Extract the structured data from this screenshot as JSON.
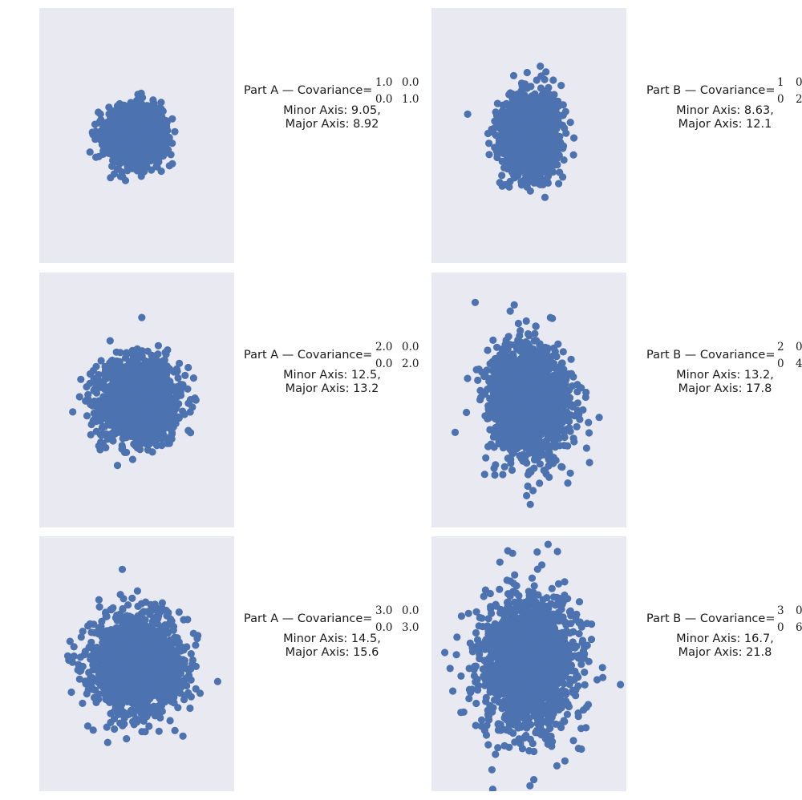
{
  "colors": {
    "marker": "#4c72b0",
    "panel_bg": "#e9e9f1"
  },
  "chart_data": [
    {
      "type": "scatter",
      "part": "A",
      "title_label": "Part A — Covariance=",
      "covariance": [
        [
          "1.0",
          "0.0"
        ],
        [
          "0.0",
          "1.0"
        ]
      ],
      "minor_axis_text": "Minor Axis: 9.05,",
      "major_axis_text": "Major Axis: 8.92",
      "minor_axis": 9.05,
      "major_axis": 8.92,
      "mean": [
        0,
        0
      ],
      "cov": [
        [
          1,
          0
        ],
        [
          0,
          1
        ]
      ],
      "xlim": [
        -7,
        7
      ],
      "ylim": [
        -9,
        9
      ],
      "grid": false
    },
    {
      "type": "scatter",
      "part": "B",
      "title_label": "Part B — Covariance=",
      "covariance": [
        [
          "1",
          "0"
        ],
        [
          "0",
          "2"
        ]
      ],
      "minor_axis_text": "Minor Axis: 8.63,",
      "major_axis_text": "Major Axis: 12.1",
      "minor_axis": 8.63,
      "major_axis": 12.1,
      "mean": [
        0,
        0
      ],
      "cov": [
        [
          1,
          0
        ],
        [
          0,
          2
        ]
      ],
      "xlim": [
        -7,
        7
      ],
      "ylim": [
        -9,
        9
      ],
      "grid": false
    },
    {
      "type": "scatter",
      "part": "A",
      "title_label": "Part A — Covariance=",
      "covariance": [
        [
          "2.0",
          "0.0"
        ],
        [
          "0.0",
          "2.0"
        ]
      ],
      "minor_axis_text": "Minor Axis: 12.5,",
      "major_axis_text": "Major Axis: 13.2",
      "minor_axis": 12.5,
      "major_axis": 13.2,
      "mean": [
        0,
        0
      ],
      "cov": [
        [
          2,
          0
        ],
        [
          0,
          2
        ]
      ],
      "xlim": [
        -7,
        7
      ],
      "ylim": [
        -9,
        9
      ],
      "grid": false
    },
    {
      "type": "scatter",
      "part": "B",
      "title_label": "Part B — Covariance=",
      "covariance": [
        [
          "2",
          "0"
        ],
        [
          "0",
          "4"
        ]
      ],
      "minor_axis_text": "Minor Axis: 13.2,",
      "major_axis_text": "Major Axis: 17.8",
      "minor_axis": 13.2,
      "major_axis": 17.8,
      "mean": [
        0,
        0
      ],
      "cov": [
        [
          2,
          0
        ],
        [
          0,
          4
        ]
      ],
      "xlim": [
        -7,
        7
      ],
      "ylim": [
        -9,
        9
      ],
      "grid": false
    },
    {
      "type": "scatter",
      "part": "A",
      "title_label": "Part A — Covariance=",
      "covariance": [
        [
          "3.0",
          "0.0"
        ],
        [
          "0.0",
          "3.0"
        ]
      ],
      "minor_axis_text": "Minor Axis: 14.5,",
      "major_axis_text": "Major Axis: 15.6",
      "minor_axis": 14.5,
      "major_axis": 15.6,
      "mean": [
        0,
        0
      ],
      "cov": [
        [
          3,
          0
        ],
        [
          0,
          3
        ]
      ],
      "xlim": [
        -7,
        7
      ],
      "ylim": [
        -9,
        9
      ],
      "grid": false
    },
    {
      "type": "scatter",
      "part": "B",
      "title_label": "Part B — Covariance=",
      "covariance": [
        [
          "3",
          "0"
        ],
        [
          "0",
          "6"
        ]
      ],
      "minor_axis_text": "Minor Axis: 16.7,",
      "major_axis_text": "Major Axis: 21.8",
      "minor_axis": 16.7,
      "major_axis": 21.8,
      "mean": [
        0,
        0
      ],
      "cov": [
        [
          3,
          0
        ],
        [
          0,
          6
        ]
      ],
      "xlim": [
        -7,
        7
      ],
      "ylim": [
        -9,
        9
      ],
      "grid": false
    }
  ]
}
